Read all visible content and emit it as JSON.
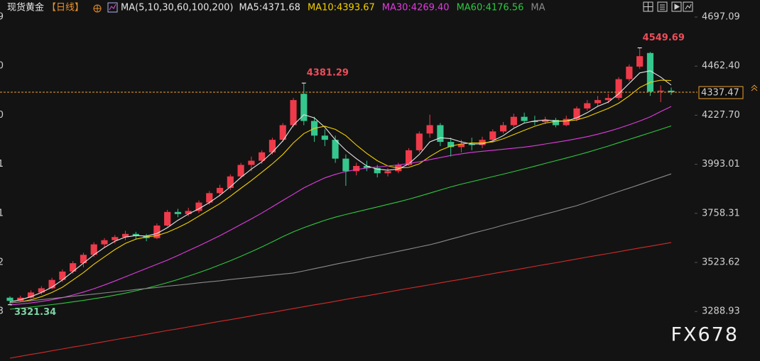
{
  "chart_data": {
    "type": "candlestick",
    "title": "现货黄金",
    "period": "【日线】",
    "indicator": "MA(5,10,30,60,100,200)",
    "watermark": "FX678",
    "up_color": "#ef3a4a",
    "down_color": "#35c78d",
    "categories": [
      null,
      null,
      null,
      null,
      null,
      null,
      null,
      null,
      null,
      null,
      null,
      null,
      null,
      null,
      null,
      null,
      null,
      null,
      null,
      null,
      null,
      null,
      null,
      null,
      null,
      null,
      null,
      null,
      null,
      null,
      null,
      null,
      null,
      null,
      null,
      null,
      null,
      null,
      null,
      null,
      null,
      null,
      null,
      null,
      null,
      null,
      null,
      null,
      null,
      null,
      null,
      null,
      null,
      null,
      null,
      null,
      null,
      null,
      null,
      null,
      null,
      null,
      null,
      null
    ],
    "open": [
      3355,
      3340,
      3355,
      3380,
      3400,
      3440,
      3480,
      3520,
      3560,
      3610,
      3630,
      3645,
      3660,
      3650,
      3640,
      3700,
      3765,
      3755,
      3770,
      3810,
      3855,
      3880,
      3935,
      3990,
      4010,
      4050,
      4110,
      4180,
      4330,
      4200,
      4130,
      4110,
      4020,
      3960,
      3985,
      3975,
      3950,
      3960,
      3990,
      4060,
      4140,
      4180,
      4100,
      4075,
      4090,
      4085,
      4110,
      4150,
      4180,
      4220,
      4200,
      4195,
      4205,
      4180,
      4210,
      4260,
      4285,
      4300,
      4310,
      4400,
      4460,
      4525,
      4340,
      4345
    ],
    "high": [
      3362,
      3365,
      3390,
      3410,
      3450,
      3490,
      3530,
      3570,
      3620,
      3640,
      3655,
      3675,
      3670,
      3660,
      3710,
      3775,
      3780,
      3785,
      3820,
      3865,
      3895,
      3945,
      4000,
      4030,
      4060,
      4120,
      4190,
      4310,
      4381.29,
      4220,
      4160,
      4130,
      4040,
      4000,
      4010,
      3990,
      3975,
      4000,
      4070,
      4150,
      4230,
      4190,
      4120,
      4110,
      4120,
      4125,
      4160,
      4195,
      4235,
      4240,
      4225,
      4220,
      4215,
      4225,
      4270,
      4300,
      4320,
      4330,
      4410,
      4470,
      4549.69,
      4530,
      4370,
      4360
    ],
    "low": [
      3321.34,
      3335,
      3350,
      3370,
      3395,
      3430,
      3470,
      3500,
      3550,
      3595,
      3615,
      3630,
      3635,
      3625,
      3635,
      3695,
      3740,
      3745,
      3760,
      3800,
      3840,
      3870,
      3925,
      3960,
      3995,
      4040,
      4100,
      4170,
      4180,
      4100,
      4080,
      4000,
      3890,
      3940,
      3960,
      3930,
      3935,
      3950,
      3985,
      4050,
      4120,
      4080,
      4030,
      4050,
      4060,
      4070,
      4100,
      4140,
      4170,
      4190,
      4180,
      4185,
      4170,
      4175,
      4200,
      4250,
      4270,
      4285,
      4300,
      4390,
      4450,
      4320,
      4290,
      4325
    ],
    "close": [
      3340,
      3355,
      3380,
      3400,
      3440,
      3480,
      3520,
      3560,
      3610,
      3630,
      3645,
      3660,
      3650,
      3640,
      3700,
      3765,
      3755,
      3770,
      3810,
      3855,
      3880,
      3935,
      3990,
      4010,
      4050,
      4110,
      4180,
      4300,
      4200,
      4130,
      4110,
      4020,
      3960,
      3985,
      3975,
      3950,
      3960,
      3990,
      4060,
      4140,
      4180,
      4100,
      4075,
      4090,
      4085,
      4110,
      4150,
      4180,
      4220,
      4200,
      4195,
      4205,
      4180,
      4210,
      4260,
      4285,
      4300,
      4310,
      4400,
      4460,
      4510,
      4340,
      4345,
      4337.47
    ],
    "series": [
      {
        "name": "MA5:4371.68",
        "color": "#e6e6e6",
        "values": [
          3335,
          3345,
          3360,
          3380,
          3405,
          3440,
          3480,
          3520,
          3560,
          3595,
          3625,
          3645,
          3652,
          3650,
          3662,
          3690,
          3725,
          3755,
          3780,
          3810,
          3845,
          3885,
          3930,
          3970,
          4005,
          4050,
          4105,
          4180,
          4230,
          4215,
          4170,
          4110,
          4060,
          4020,
          3985,
          3970,
          3965,
          3970,
          3995,
          4040,
          4100,
          4120,
          4115,
          4100,
          4090,
          4090,
          4105,
          4130,
          4165,
          4190,
          4200,
          4205,
          4200,
          4200,
          4215,
          4240,
          4270,
          4290,
          4330,
          4380,
          4430,
          4440,
          4410,
          4371.68
        ]
      },
      {
        "name": "MA10:4393.67",
        "color": "#f2d000",
        "values": [
          3330,
          3335,
          3345,
          3360,
          3380,
          3405,
          3440,
          3475,
          3515,
          3550,
          3585,
          3615,
          3635,
          3645,
          3652,
          3668,
          3690,
          3715,
          3745,
          3775,
          3805,
          3840,
          3878,
          3915,
          3955,
          3995,
          4040,
          4095,
          4140,
          4165,
          4175,
          4160,
          4130,
          4085,
          4045,
          4010,
          3985,
          3975,
          3978,
          3995,
          4030,
          4060,
          4080,
          4090,
          4095,
          4095,
          4100,
          4115,
          4135,
          4155,
          4175,
          4190,
          4198,
          4200,
          4205,
          4220,
          4240,
          4260,
          4285,
          4320,
          4360,
          4385,
          4395,
          4393.67
        ]
      },
      {
        "name": "MA30:4269.40",
        "color": "#e03ce0",
        "values": [
          3320,
          3325,
          3330,
          3337,
          3345,
          3355,
          3368,
          3382,
          3398,
          3416,
          3435,
          3455,
          3475,
          3495,
          3515,
          3535,
          3557,
          3580,
          3603,
          3627,
          3652,
          3678,
          3705,
          3732,
          3760,
          3790,
          3820,
          3850,
          3880,
          3905,
          3928,
          3945,
          3958,
          3968,
          3975,
          3980,
          3985,
          3990,
          3996,
          4005,
          4015,
          4025,
          4035,
          4043,
          4050,
          4055,
          4060,
          4065,
          4070,
          4075,
          4082,
          4090,
          4098,
          4106,
          4115,
          4125,
          4137,
          4150,
          4165,
          4182,
          4200,
          4220,
          4245,
          4269.4
        ]
      },
      {
        "name": "MA60:4176.56",
        "color": "#2ec840",
        "values": [
          3300,
          3305,
          3310,
          3316,
          3322,
          3328,
          3335,
          3342,
          3350,
          3358,
          3367,
          3377,
          3388,
          3400,
          3413,
          3427,
          3442,
          3458,
          3475,
          3493,
          3512,
          3532,
          3553,
          3575,
          3598,
          3622,
          3647,
          3670,
          3690,
          3708,
          3725,
          3740,
          3753,
          3765,
          3777,
          3789,
          3801,
          3813,
          3826,
          3840,
          3855,
          3870,
          3885,
          3898,
          3910,
          3922,
          3934,
          3946,
          3958,
          3971,
          3984,
          3997,
          4010,
          4023,
          4036,
          4050,
          4065,
          4080,
          4096,
          4112,
          4128,
          4144,
          4160,
          4176.56
        ]
      },
      {
        "name": "MA",
        "color": "#8a8a8a",
        "values": [
          3330,
          3335,
          3341,
          3346,
          3351,
          3356,
          3362,
          3367,
          3372,
          3378,
          3383,
          3388,
          3394,
          3399,
          3404,
          3410,
          3415,
          3420,
          3426,
          3431,
          3436,
          3442,
          3447,
          3452,
          3458,
          3463,
          3468,
          3473,
          3483,
          3494,
          3504,
          3515,
          3525,
          3535,
          3546,
          3556,
          3566,
          3577,
          3587,
          3598,
          3608,
          3621,
          3635,
          3648,
          3662,
          3675,
          3688,
          3702,
          3715,
          3728,
          3742,
          3755,
          3768,
          3782,
          3795,
          3812,
          3829,
          3846,
          3863,
          3879,
          3896,
          3913,
          3930,
          3947
        ]
      },
      {
        "color": "#d42a2a",
        "values": [
          3066,
          3075,
          3084,
          3092,
          3101,
          3110,
          3119,
          3127,
          3136,
          3145,
          3154,
          3163,
          3171,
          3180,
          3189,
          3198,
          3206,
          3215,
          3224,
          3233,
          3242,
          3250,
          3259,
          3268,
          3277,
          3285,
          3294,
          3303,
          3312,
          3321,
          3329,
          3338,
          3347,
          3356,
          3364,
          3373,
          3382,
          3391,
          3400,
          3408,
          3417,
          3426,
          3435,
          3443,
          3452,
          3461,
          3470,
          3479,
          3487,
          3496,
          3505,
          3514,
          3522,
          3531,
          3540,
          3549,
          3558,
          3566,
          3575,
          3584,
          3593,
          3601,
          3610,
          3619
        ]
      }
    ],
    "ylim": [
      3052.3,
      4778.5
    ],
    "yticks": [
      4697.09,
      {
        "value": 4462.4,
        "label": "4462.40"
      },
      {
        "value": 4227.7,
        "label": "4227.70"
      },
      3993.01,
      3758.31,
      3523.62,
      3288.93
    ],
    "price_line_color": "#f0a030",
    "high_label_color": "#ec4d5a",
    "low_label_color": "#7fd3a4"
  }
}
